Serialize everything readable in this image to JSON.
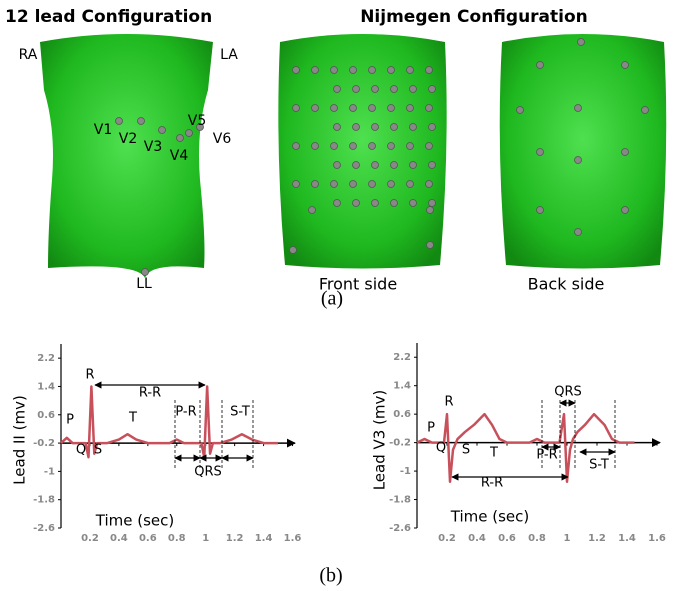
{
  "panel_a": {
    "titles": [
      "12 lead Configuration",
      "Nijmegen Configuration"
    ],
    "lead_labels": [
      "RA",
      "LA",
      "V1",
      "V2",
      "V3",
      "V4",
      "V5",
      "V6",
      "LL"
    ],
    "views": [
      "Front side",
      "Back side"
    ],
    "caption": "(a)"
  },
  "chart_data": [
    {
      "type": "line",
      "ylabel": "Lead II (mv)",
      "xlabel": "Time (sec)",
      "color": "#c8505a",
      "x": [
        0,
        0.04,
        0.08,
        0.12,
        0.17,
        0.19,
        0.21,
        0.23,
        0.25,
        0.27,
        0.32,
        0.4,
        0.46,
        0.52,
        0.6,
        0.75,
        0.8,
        0.85,
        0.9,
        0.97,
        0.99,
        1.01,
        1.03,
        1.05,
        1.1,
        1.18,
        1.25,
        1.32,
        1.4,
        1.5
      ],
      "values": [
        -0.2,
        -0.05,
        -0.2,
        -0.2,
        -0.2,
        -0.6,
        1.4,
        -0.5,
        -0.2,
        -0.2,
        -0.2,
        -0.1,
        0.05,
        -0.1,
        -0.2,
        -0.2,
        -0.1,
        -0.2,
        -0.2,
        -0.2,
        -0.6,
        1.4,
        -0.5,
        -0.2,
        -0.2,
        -0.1,
        0.05,
        -0.1,
        -0.2,
        -0.2
      ],
      "xlim": [
        0,
        1.7
      ],
      "ylim": [
        -2.6,
        2.6
      ],
      "xaxis_crossing": -0.2,
      "xticks": [
        0.2,
        0.4,
        0.6,
        0.8,
        1,
        1.2,
        1.4,
        1.6
      ],
      "yticks": [
        2.2,
        1.4,
        0.6,
        -0.2,
        -1,
        -1.8,
        -2.6
      ],
      "annotations": [
        "P",
        "Q",
        "R",
        "S",
        "T",
        "R-R",
        "P-R",
        "QRS",
        "S-T"
      ]
    },
    {
      "type": "line",
      "ylabel": "Lead V3 (mv)",
      "xlabel": "Time (sec)",
      "color": "#c8505a",
      "x": [
        0,
        0.05,
        0.1,
        0.15,
        0.18,
        0.2,
        0.22,
        0.24,
        0.27,
        0.32,
        0.38,
        0.45,
        0.5,
        0.55,
        0.6,
        0.75,
        0.8,
        0.85,
        0.9,
        0.95,
        0.98,
        1.0,
        1.02,
        1.04,
        1.07,
        1.12,
        1.18,
        1.25,
        1.3,
        1.35,
        1.4,
        1.45
      ],
      "values": [
        -0.2,
        -0.1,
        -0.2,
        -0.2,
        -0.2,
        0.6,
        -1.3,
        -0.4,
        -0.1,
        0.1,
        0.3,
        0.6,
        0.3,
        -0.1,
        -0.2,
        -0.2,
        -0.1,
        -0.2,
        -0.2,
        -0.2,
        0.6,
        -1.3,
        -0.4,
        -0.1,
        0.1,
        0.3,
        0.6,
        0.3,
        -0.1,
        -0.2,
        -0.2,
        -0.2
      ],
      "xlim": [
        0,
        1.7
      ],
      "ylim": [
        -2.6,
        2.6
      ],
      "xaxis_crossing": -0.2,
      "xticks": [
        0.2,
        0.4,
        0.6,
        0.8,
        1,
        1.2,
        1.4,
        1.6
      ],
      "yticks": [
        2.2,
        1.4,
        0.6,
        -0.2,
        -1,
        -1.8,
        -2.6
      ],
      "annotations": [
        "P",
        "Q",
        "R",
        "S",
        "T",
        "R-R",
        "P-R",
        "QRS",
        "S-T"
      ]
    }
  ],
  "caption_b": "(b)"
}
